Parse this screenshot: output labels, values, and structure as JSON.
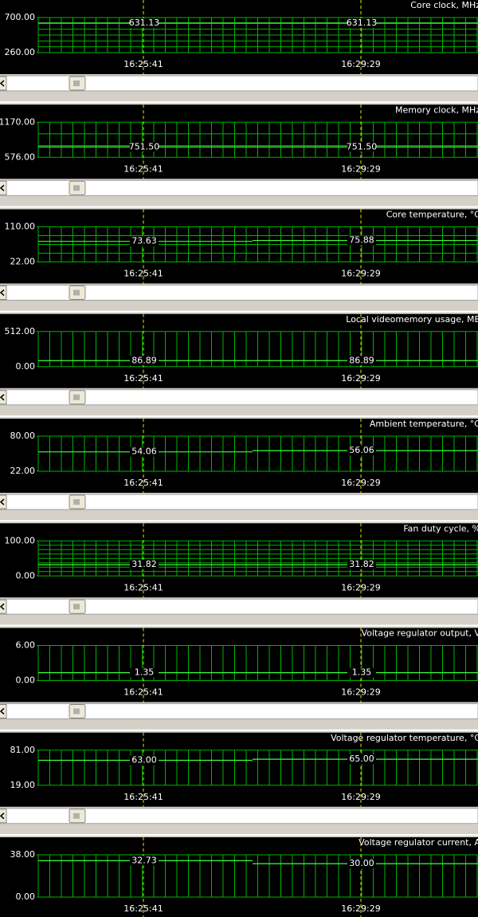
{
  "panels": [
    {
      "title": "Core clock, MHz",
      "yticks": [
        {
          "value": 260,
          "label": "260.00"
        },
        {
          "value": 700,
          "label": "700.00"
        }
      ],
      "markers": [
        {
          "time": "16:25:41",
          "value": 631.13,
          "label": "631.13"
        },
        {
          "time": "16:29:29",
          "value": 631.13,
          "label": "631.13"
        }
      ]
    },
    {
      "title": "Memory clock, MHz",
      "yticks": [
        {
          "value": 576,
          "label": "576.00"
        },
        {
          "value": 1170,
          "label": "1170.00"
        }
      ],
      "markers": [
        {
          "time": "16:25:41",
          "value": 751.5,
          "label": "751.50"
        },
        {
          "time": "16:29:29",
          "value": 751.5,
          "label": "751.50"
        }
      ]
    },
    {
      "title": "Core temperature, °C",
      "yticks": [
        {
          "value": 22,
          "label": "22.00"
        },
        {
          "value": 110,
          "label": "110.00"
        }
      ],
      "markers": [
        {
          "time": "16:25:41",
          "value": 73.63,
          "label": "73.63"
        },
        {
          "time": "16:29:29",
          "value": 75.88,
          "label": "75.88"
        }
      ]
    },
    {
      "title": "Local videomemory usage, MB",
      "yticks": [
        {
          "value": 0,
          "label": "0.00"
        },
        {
          "value": 512,
          "label": "512.00"
        }
      ],
      "markers": [
        {
          "time": "16:25:41",
          "value": 86.89,
          "label": "86.89"
        },
        {
          "time": "16:29:29",
          "value": 86.89,
          "label": "86.89"
        }
      ]
    },
    {
      "title": "Ambient temperature, °C",
      "yticks": [
        {
          "value": 22,
          "label": "22.00"
        },
        {
          "value": 80,
          "label": "80.00"
        }
      ],
      "markers": [
        {
          "time": "16:25:41",
          "value": 54.06,
          "label": "54.06"
        },
        {
          "time": "16:29:29",
          "value": 56.06,
          "label": "56.06"
        }
      ]
    },
    {
      "title": "Fan duty cycle, %",
      "yticks": [
        {
          "value": 0,
          "label": "0.00"
        },
        {
          "value": 100,
          "label": "100.00"
        }
      ],
      "markers": [
        {
          "time": "16:25:41",
          "value": 31.82,
          "label": "31.82"
        },
        {
          "time": "16:29:29",
          "value": 31.82,
          "label": "31.82"
        }
      ]
    },
    {
      "title": "Voltage regulator output, V",
      "yticks": [
        {
          "value": 0,
          "label": "0.00"
        },
        {
          "value": 6,
          "label": "6.00"
        }
      ],
      "markers": [
        {
          "time": "16:25:41",
          "value": 1.35,
          "label": "1.35"
        },
        {
          "time": "16:29:29",
          "value": 1.35,
          "label": "1.35"
        }
      ]
    },
    {
      "title": "Voltage regulator temperature, °C",
      "yticks": [
        {
          "value": 19,
          "label": "19.00"
        },
        {
          "value": 81,
          "label": "81.00"
        }
      ],
      "markers": [
        {
          "time": "16:25:41",
          "value": 63,
          "label": "63.00"
        },
        {
          "time": "16:29:29",
          "value": 65,
          "label": "65.00"
        }
      ]
    },
    {
      "title": "Voltage regulator current, A",
      "yticks": [
        {
          "value": 0,
          "label": "0.00"
        },
        {
          "value": 38,
          "label": "38.00"
        }
      ],
      "markers": [
        {
          "time": "16:25:41",
          "value": 32.73,
          "label": "32.73"
        },
        {
          "time": "16:29:29",
          "value": 30,
          "label": "30.00"
        }
      ]
    }
  ]
}
